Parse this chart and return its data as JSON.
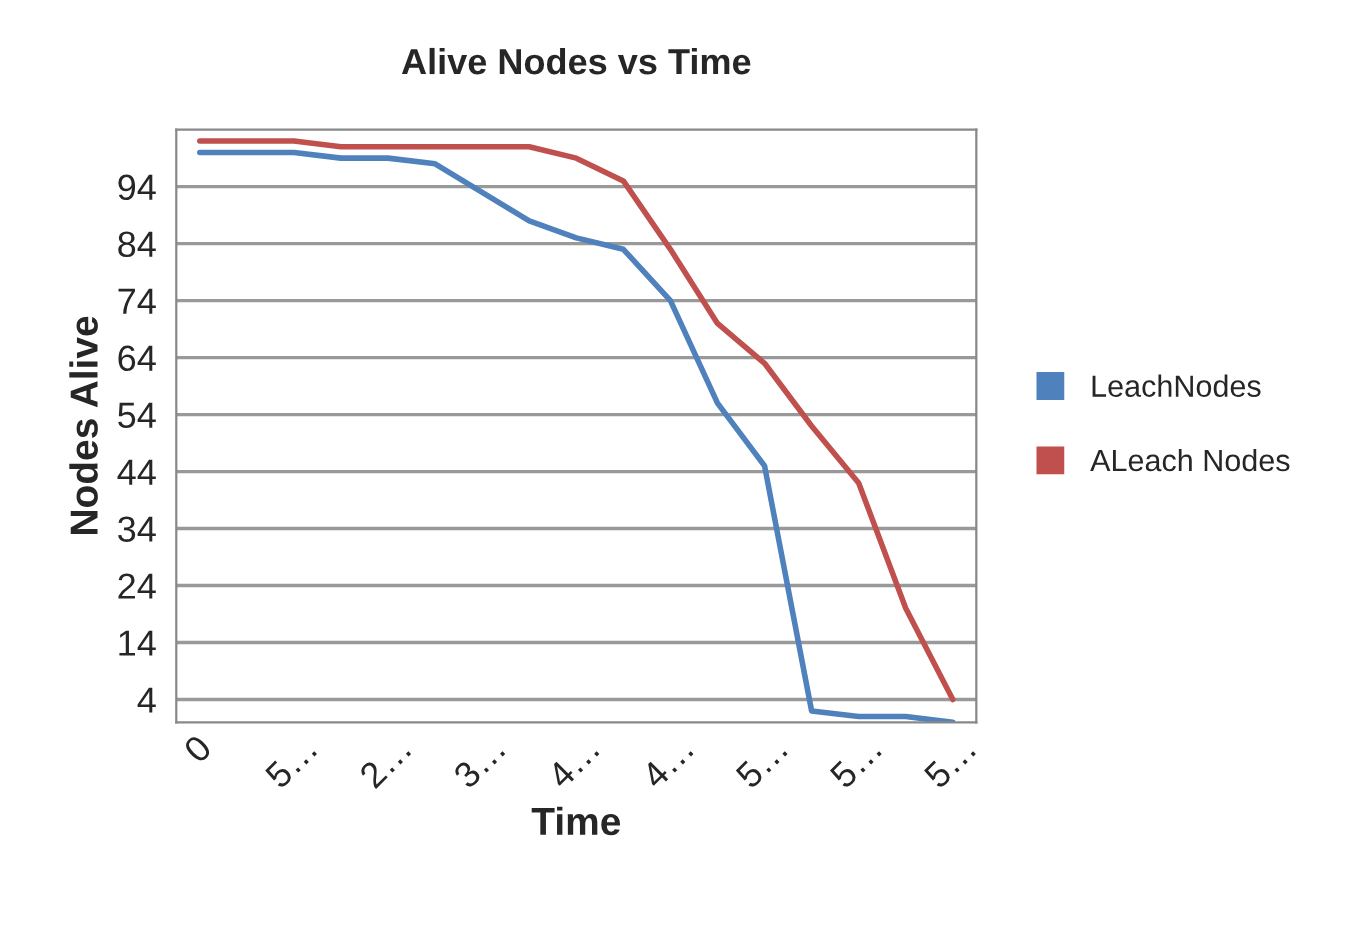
{
  "chart_data": {
    "type": "line",
    "title": "Alive Nodes vs Time",
    "xlabel": "Time",
    "ylabel": "Nodes Alive",
    "categories": [
      "0",
      null,
      "5…",
      null,
      "2…",
      null,
      "3…",
      null,
      "4…",
      null,
      "4…",
      null,
      "5…",
      null,
      "5…",
      null,
      "5…"
    ],
    "series": [
      {
        "name": "LeachNodes",
        "color": "#4f81bd",
        "values": [
          100,
          100,
          100,
          99,
          99,
          98,
          93,
          88,
          85,
          83,
          74,
          56,
          45,
          2,
          1,
          1,
          0
        ]
      },
      {
        "name": "ALeach Nodes",
        "color": "#c0504d",
        "values": [
          102,
          102,
          102,
          101,
          101,
          101,
          101,
          101,
          99,
          95,
          83,
          70,
          63,
          52,
          42,
          20,
          4
        ]
      }
    ],
    "ylim": [
      0,
      104
    ],
    "yticks": [
      4,
      14,
      24,
      34,
      44,
      54,
      64,
      74,
      84,
      94
    ],
    "grid": "y",
    "legend": "right",
    "marker": "none",
    "line_style": "solid"
  }
}
